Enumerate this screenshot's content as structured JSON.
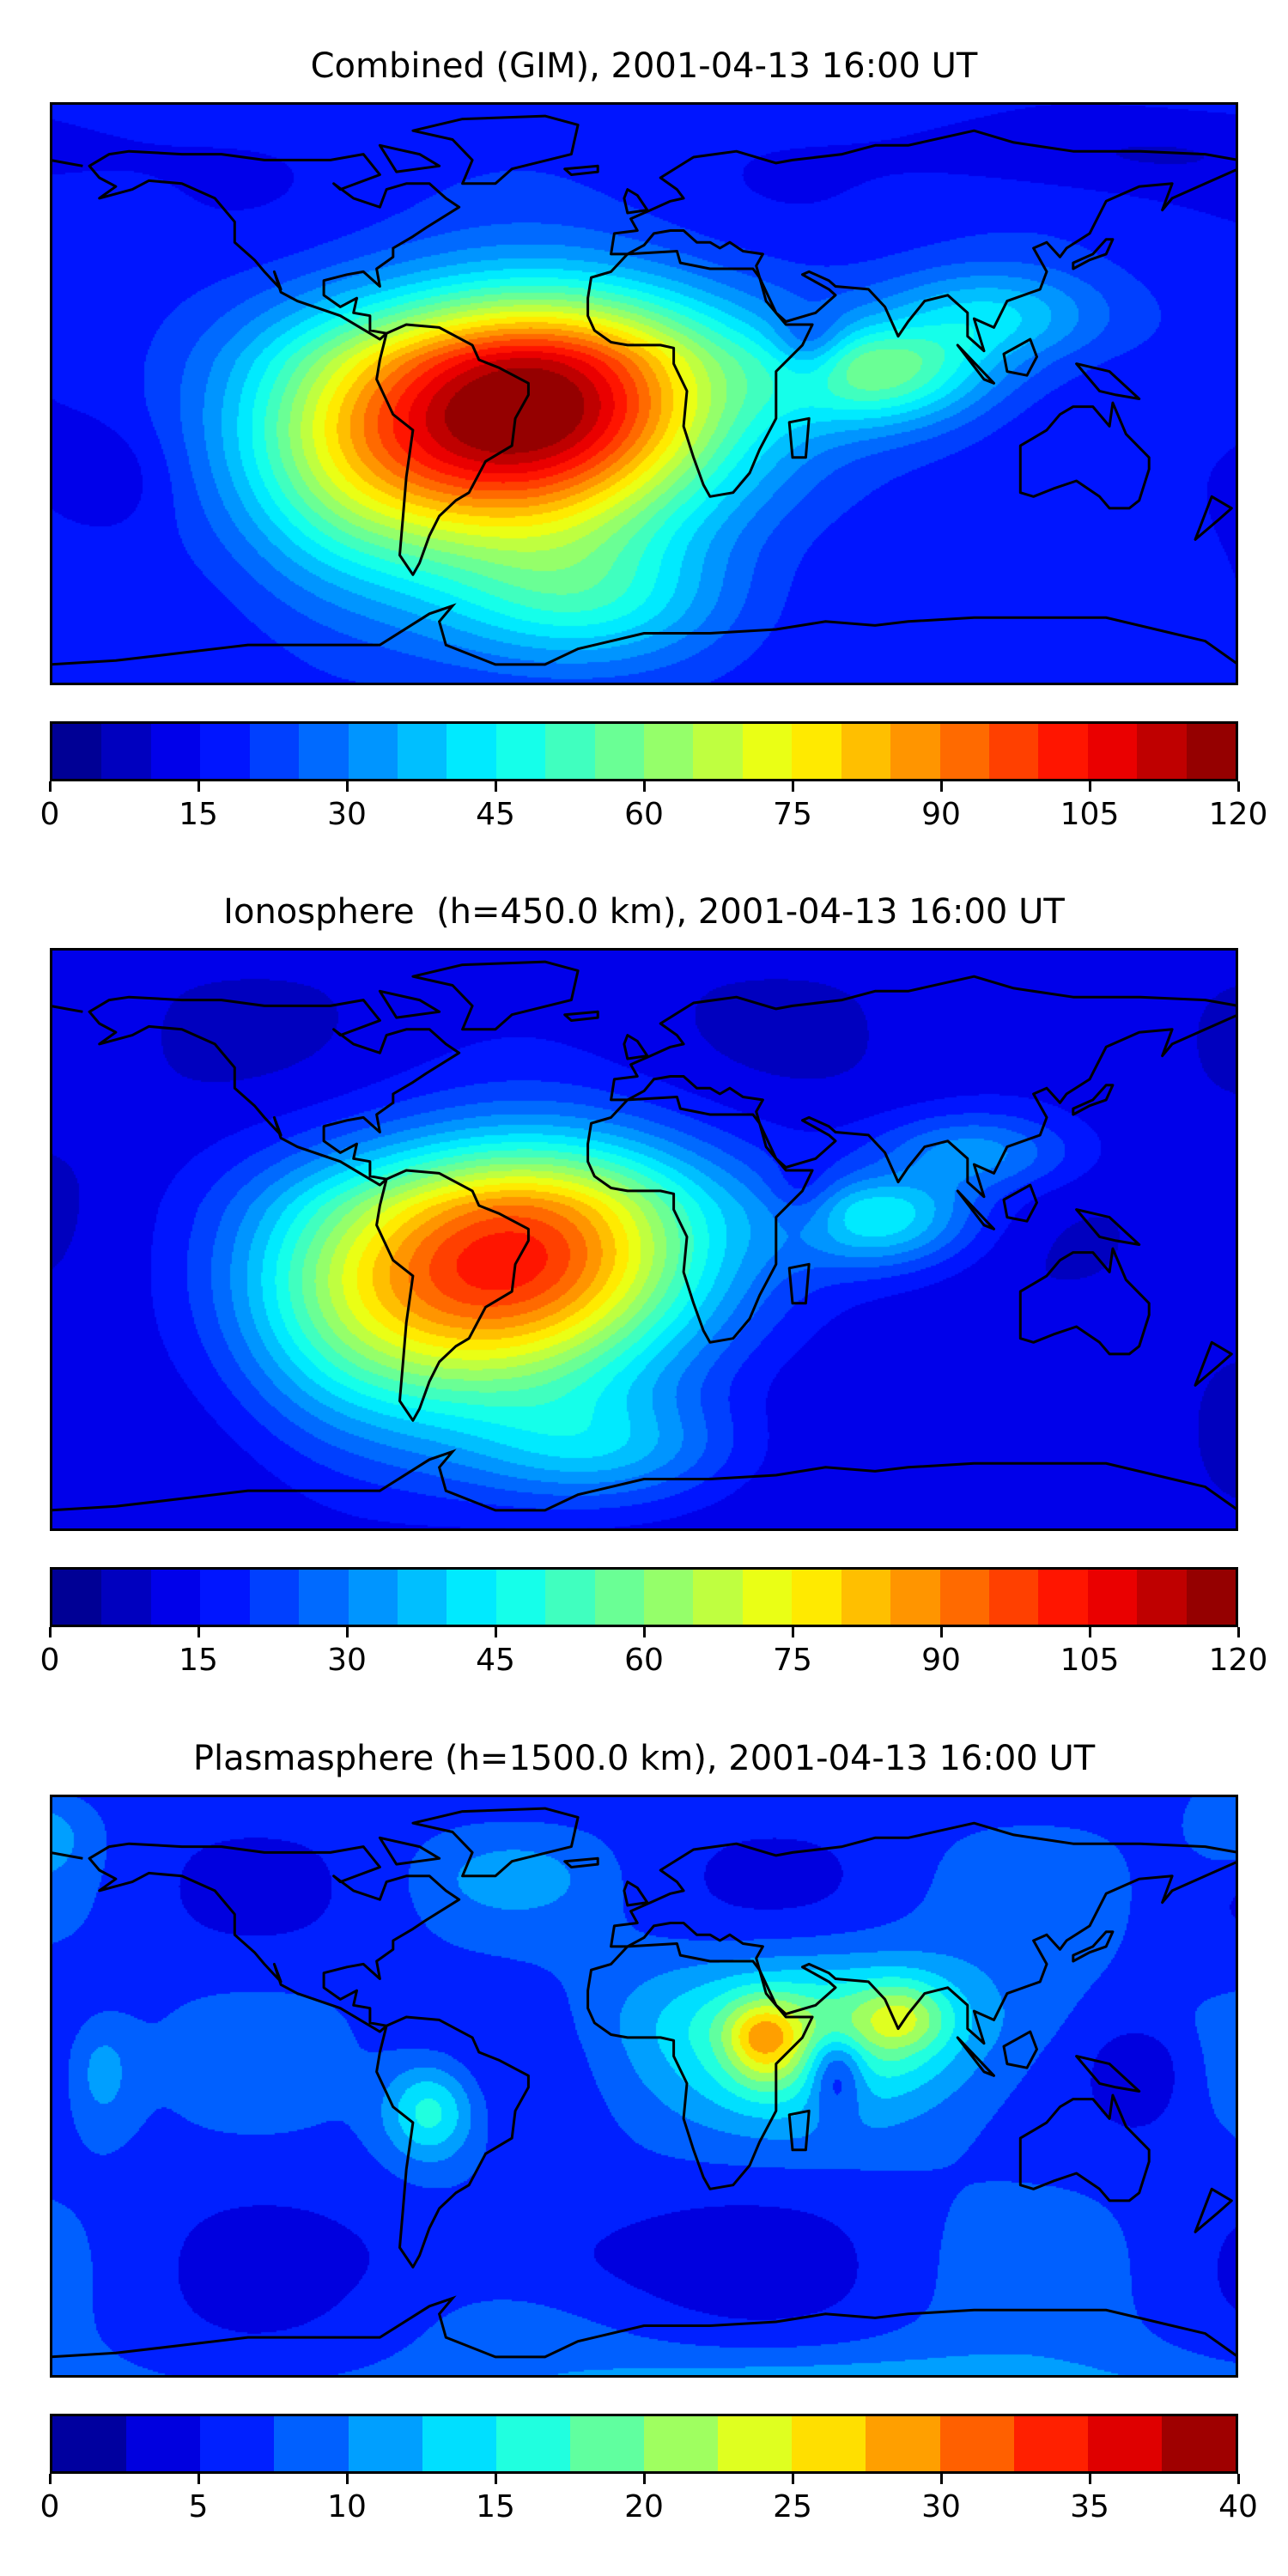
{
  "panels": [
    {
      "title": "Combined (GIM), 2001-04-13 16:00 UT",
      "tick_labels": [
        "0",
        "15",
        "30",
        "45",
        "60",
        "75",
        "90",
        "105",
        "120"
      ]
    },
    {
      "title": "Ionosphere  (h=450.0 km), 2001-04-13 16:00 UT",
      "tick_labels": [
        "0",
        "15",
        "30",
        "45",
        "60",
        "75",
        "90",
        "105",
        "120"
      ]
    },
    {
      "title": "Plasmasphere (h=1500.0 km), 2001-04-13 16:00 UT",
      "tick_labels": [
        "0",
        "5",
        "10",
        "15",
        "20",
        "25",
        "30",
        "35",
        "40"
      ]
    }
  ],
  "chart_data": [
    {
      "type": "heatmap",
      "title": "Combined (GIM), 2001-04-13 16:00 UT",
      "colormap": "jet",
      "levels": {
        "min": 0,
        "max": 120,
        "step": 5
      },
      "ticks": [
        0,
        15,
        30,
        45,
        60,
        75,
        90,
        105,
        120
      ],
      "xlim_lon": [
        -180,
        180
      ],
      "field_approx": {
        "base": 17,
        "peaks": [
          {
            "lon": -28,
            "lat": -10,
            "value": 88,
            "sig_lon": 40,
            "sig_lat": 24
          },
          {
            "lon": -60,
            "lat": -20,
            "value": 30,
            "sig_lon": 35,
            "sig_lat": 25
          },
          {
            "lon": -95,
            "lat": -25,
            "value": 22,
            "sig_lon": 25,
            "sig_lat": 25
          },
          {
            "lon": 72,
            "lat": -3,
            "value": 35,
            "sig_lon": 22,
            "sig_lat": 10
          },
          {
            "lon": 105,
            "lat": 15,
            "value": 25,
            "sig_lon": 25,
            "sig_lat": 12
          },
          {
            "lon": -15,
            "lat": -62,
            "value": 22,
            "sig_lon": 30,
            "sig_lat": 12
          },
          {
            "lon": 50,
            "lat": 5,
            "value": -15,
            "sig_lon": 8,
            "sig_lat": 8
          },
          {
            "lon": 140,
            "lat": 70,
            "value": -8,
            "sig_lon": 40,
            "sig_lat": 10
          },
          {
            "lon": -165,
            "lat": -30,
            "value": -7,
            "sig_lon": 15,
            "sig_lat": 10
          }
        ]
      }
    },
    {
      "type": "heatmap",
      "title": "Ionosphere  (h=450.0 km), 2001-04-13 16:00 UT",
      "colormap": "jet",
      "levels": {
        "min": 0,
        "max": 120,
        "step": 5
      },
      "ticks": [
        0,
        15,
        30,
        45,
        60,
        75,
        90,
        105,
        120
      ],
      "xlim_lon": [
        -180,
        180
      ],
      "field_approx": {
        "base": 11,
        "peaks": [
          {
            "lon": -32,
            "lat": -10,
            "value": 76,
            "sig_lon": 38,
            "sig_lat": 24
          },
          {
            "lon": -65,
            "lat": -25,
            "value": 28,
            "sig_lon": 35,
            "sig_lat": 25
          },
          {
            "lon": -95,
            "lat": -25,
            "value": 18,
            "sig_lon": 25,
            "sig_lat": 25
          },
          {
            "lon": 72,
            "lat": -3,
            "value": 30,
            "sig_lon": 20,
            "sig_lat": 9
          },
          {
            "lon": 100,
            "lat": 18,
            "value": 22,
            "sig_lon": 22,
            "sig_lat": 10
          },
          {
            "lon": -10,
            "lat": -62,
            "value": 20,
            "sig_lon": 28,
            "sig_lat": 10
          },
          {
            "lon": 48,
            "lat": 3,
            "value": -10,
            "sig_lon": 8,
            "sig_lat": 8
          }
        ]
      }
    },
    {
      "type": "heatmap",
      "title": "Plasmasphere (h=1500.0 km), 2001-04-13 16:00 UT",
      "colormap": "jet",
      "levels": {
        "min": 0,
        "max": 40,
        "step": 2.5
      },
      "ticks": [
        0,
        5,
        10,
        15,
        20,
        25,
        30,
        35,
        40
      ],
      "xlim_lon": [
        -180,
        180
      ],
      "field_approx": {
        "base": 6.5,
        "peaks": [
          {
            "lon": 55,
            "lat": 8,
            "value": 11,
            "sig_lon": 45,
            "sig_lat": 18
          },
          {
            "lon": 36,
            "lat": 5,
            "value": 11,
            "sig_lon": 8,
            "sig_lat": 9
          },
          {
            "lon": 78,
            "lat": 12,
            "value": 8,
            "sig_lon": 10,
            "sig_lat": 9
          },
          {
            "lon": 58,
            "lat": -5,
            "value": -9,
            "sig_lon": 6,
            "sig_lat": 8
          },
          {
            "lon": -65,
            "lat": -15,
            "value": 10,
            "sig_lon": 10,
            "sig_lat": 9
          },
          {
            "lon": -165,
            "lat": -5,
            "value": 5,
            "sig_lon": 8,
            "sig_lat": 12
          },
          {
            "lon": 150,
            "lat": -5,
            "value": -4,
            "sig_lon": 10,
            "sig_lat": 10
          },
          {
            "lon": -25,
            "lat": -52,
            "value": -3,
            "sig_lon": 40,
            "sig_lat": 10
          },
          {
            "lon": 60,
            "lat": -95,
            "value": 9,
            "sig_lon": 90,
            "sig_lat": 12
          },
          {
            "lon": -40,
            "lat": 60,
            "value": 3,
            "sig_lon": 15,
            "sig_lat": 8
          },
          {
            "lon": 178,
            "lat": 75,
            "value": 4,
            "sig_lon": 10,
            "sig_lat": 10
          }
        ]
      }
    }
  ]
}
